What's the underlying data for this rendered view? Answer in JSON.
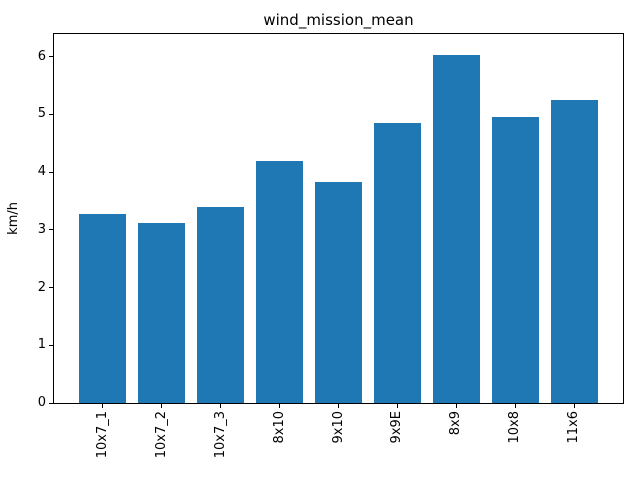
{
  "chart_data": {
    "type": "bar",
    "title": "wind_mission_mean",
    "xlabel": "",
    "ylabel": "km/h",
    "categories": [
      "10x7_1",
      "10x7_2",
      "10x7_3",
      "8x10",
      "9x10",
      "9x9E",
      "8x9",
      "10x8",
      "11x6"
    ],
    "values": [
      3.27,
      3.11,
      3.4,
      4.19,
      3.83,
      4.85,
      6.03,
      4.95,
      5.24
    ],
    "yticks": [
      0,
      1,
      2,
      3,
      4,
      5,
      6
    ],
    "ylim": [
      0,
      6.39
    ],
    "bar_color": "#1f77b4",
    "grid": false,
    "legend_position": "none"
  }
}
